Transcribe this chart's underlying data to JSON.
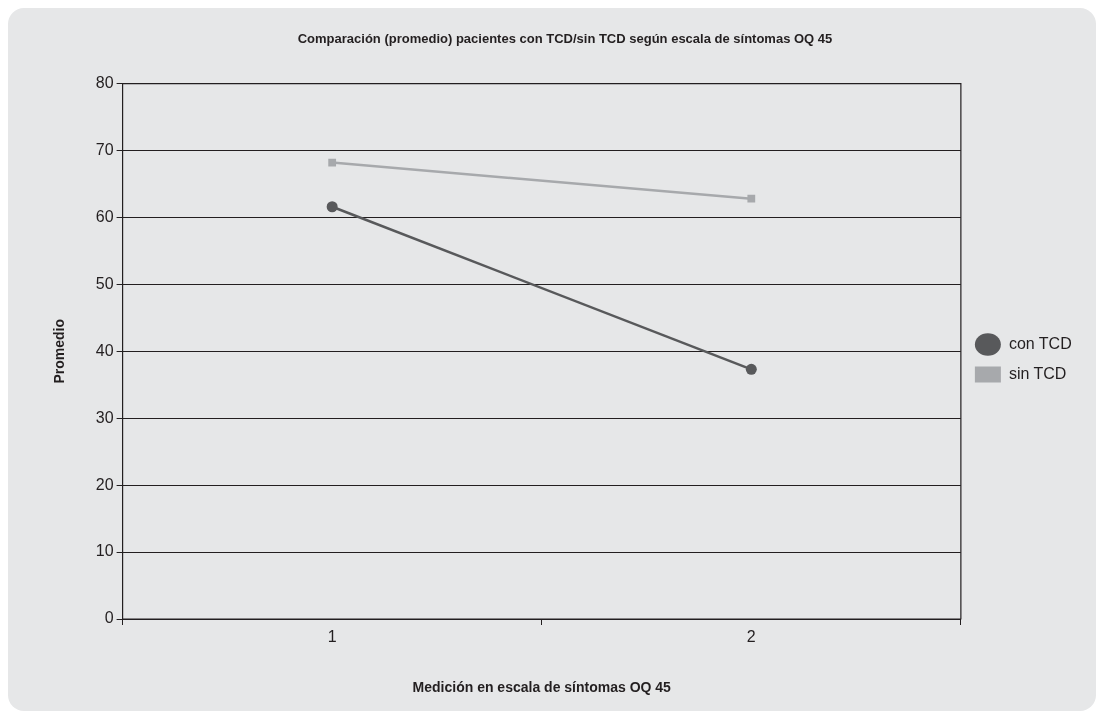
{
  "chart_data": {
    "type": "line",
    "title": "Comparación (promedio) pacientes con TCD/sin TCD según escala de síntomas OQ 45",
    "xlabel": "Medición en escala de síntomas OQ 45",
    "ylabel": "Promedio",
    "categories": [
      "1",
      "2"
    ],
    "series": [
      {
        "name": "con TCD",
        "color": "#58595b",
        "values": [
          61.6,
          37.3
        ],
        "marker": "circle"
      },
      {
        "name": "sin TCD",
        "color": "#a7a9ac",
        "values": [
          68.2,
          62.8
        ],
        "marker": "square"
      }
    ],
    "ylim": [
      0,
      80
    ],
    "yticks": [
      0,
      10,
      20,
      30,
      40,
      50,
      60,
      70,
      80
    ],
    "grid": "y",
    "legend": "right"
  }
}
